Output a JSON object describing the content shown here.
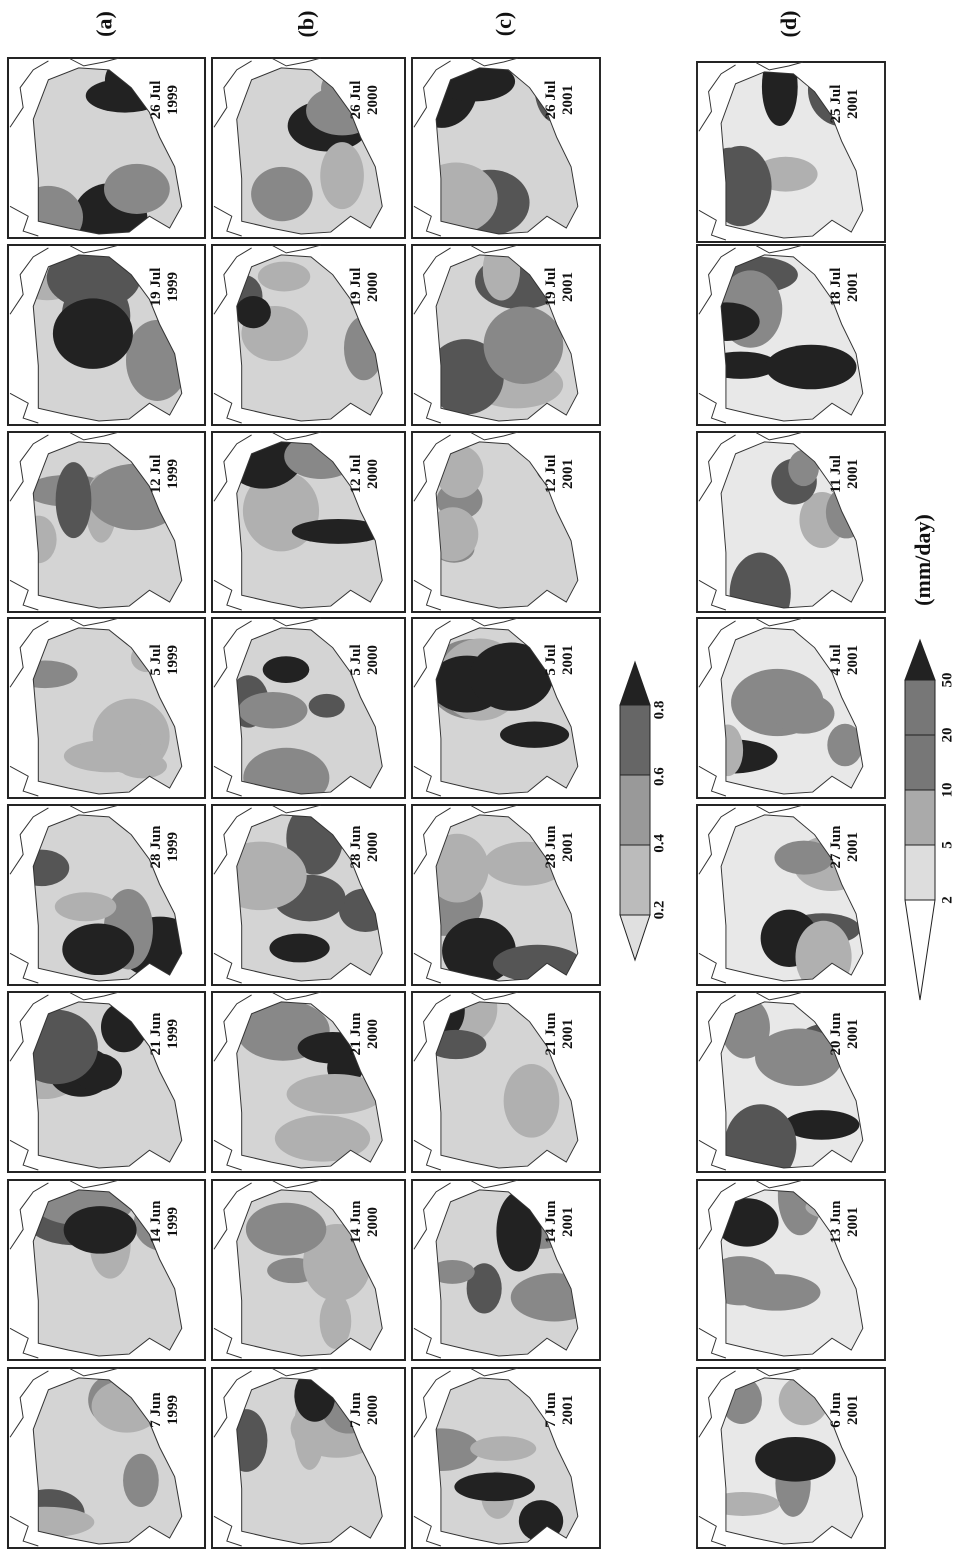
{
  "panels": [
    {
      "label": "(a)",
      "maps": [
        {
          "date": "7 Jun",
          "year": "1999"
        },
        {
          "date": "14 Jun",
          "year": "1999"
        },
        {
          "date": "21 Jun",
          "year": "1999"
        },
        {
          "date": "28 Jun",
          "year": "1999"
        },
        {
          "date": "5 Jul",
          "year": "1999"
        },
        {
          "date": "12 Jul",
          "year": "1999"
        },
        {
          "date": "19 Jul",
          "year": "1999"
        },
        {
          "date": "26 Jul",
          "year": "1999"
        }
      ]
    },
    {
      "label": "(b)",
      "maps": [
        {
          "date": "7 Jun",
          "year": "2000"
        },
        {
          "date": "14 Jun",
          "year": "2000"
        },
        {
          "date": "21 Jun",
          "year": "2000"
        },
        {
          "date": "28 Jun",
          "year": "2000"
        },
        {
          "date": "5 Jul",
          "year": "2000"
        },
        {
          "date": "12 Jul",
          "year": "2000"
        },
        {
          "date": "19 Jul",
          "year": "2000"
        },
        {
          "date": "26 Jul",
          "year": "2000"
        }
      ]
    },
    {
      "label": "(c)",
      "maps": [
        {
          "date": "7 Jun",
          "year": "2001"
        },
        {
          "date": "14 Jun",
          "year": "2001"
        },
        {
          "date": "21 Jun",
          "year": "2001"
        },
        {
          "date": "28 Jun",
          "year": "2001"
        },
        {
          "date": "5 Jul",
          "year": "2001"
        },
        {
          "date": "12 Jul",
          "year": "2001"
        },
        {
          "date": "19 Jul",
          "year": "2001"
        },
        {
          "date": "26 Jul",
          "year": "2001"
        }
      ]
    },
    {
      "label": "(d)",
      "maps": [
        {
          "date": "6 Jun",
          "year": "2001"
        },
        {
          "date": "13 Jun",
          "year": "2001"
        },
        {
          "date": "20 Jun",
          "year": "2001"
        },
        {
          "date": "27 Jun",
          "year": "2001"
        },
        {
          "date": "4 Jul",
          "year": "2001"
        },
        {
          "date": "11 Jul",
          "year": "2001"
        },
        {
          "date": "18 Jul",
          "year": "2001"
        },
        {
          "date": "25 Jul",
          "year": "2001"
        }
      ]
    }
  ],
  "colorbars": [
    {
      "ticks": [
        0.2,
        0.4,
        0.6,
        0.8
      ]
    },
    {
      "ticks": [
        2,
        5,
        10,
        20,
        50
      ],
      "unit": "(mm/day)"
    }
  ]
}
